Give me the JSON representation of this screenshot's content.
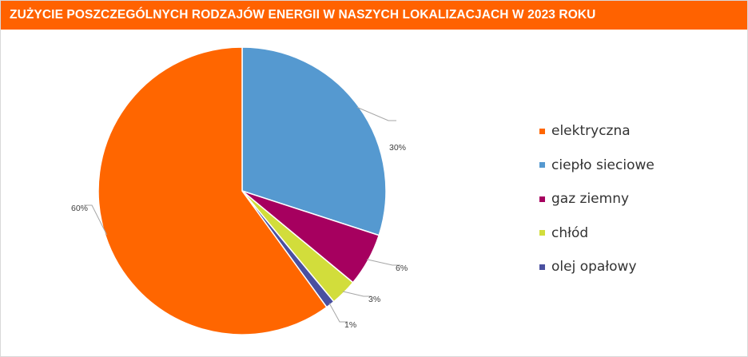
{
  "title": "ZUŻYCIE POSZCZEGÓLNYCH RODZAJÓW ENERGII W NASZYCH LOKALIZACJACH W 2023 ROKU",
  "colors": {
    "title_bar": "#ff6200",
    "title_text": "#ffffff"
  },
  "chart_data": {
    "type": "pie",
    "categories": [
      "elektryczna",
      "ciepło sieciowe",
      "gaz ziemny",
      "chłód",
      "olej opałowy"
    ],
    "values": [
      60,
      30,
      6,
      3,
      1
    ],
    "data_labels": [
      "60%",
      "30%",
      "6%",
      "3%",
      "1%"
    ],
    "colors": [
      "#ff6600",
      "#5599d0",
      "#a6005f",
      "#d2dd3b",
      "#4a50a0"
    ],
    "start_angle_deg": 0,
    "direction": "clockwise",
    "legend_position": "right"
  },
  "legend": {
    "items": [
      {
        "label": "elektryczna",
        "color": "#ff6600"
      },
      {
        "label": "ciepło sieciowe",
        "color": "#5599d0"
      },
      {
        "label": "gaz ziemny",
        "color": "#a6005f"
      },
      {
        "label": "chłód",
        "color": "#d2dd3b"
      },
      {
        "label": "olej opałowy",
        "color": "#4a50a0"
      }
    ]
  }
}
